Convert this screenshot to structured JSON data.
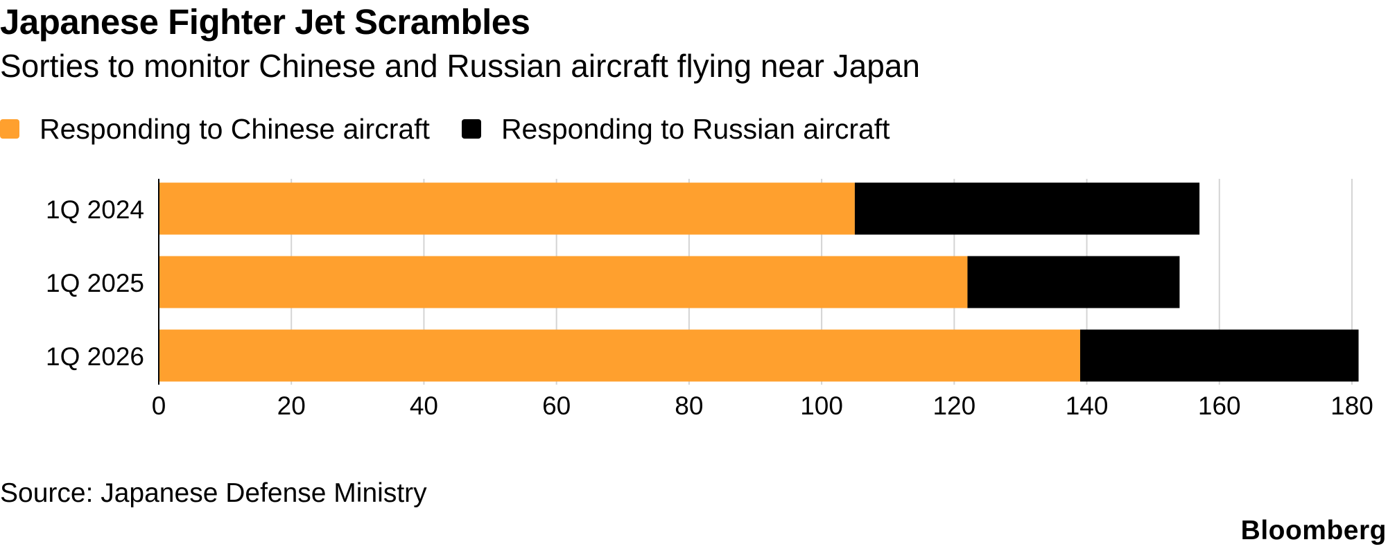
{
  "chart_data": {
    "type": "bar",
    "orientation": "horizontal",
    "stacked": true,
    "title": "Japanese Fighter Jet Scrambles",
    "subtitle": "Sorties to monitor Chinese and Russian aircraft flying near Japan",
    "xlabel": "",
    "ylabel": "",
    "categories": [
      "1Q 2024",
      "1Q 2025",
      "1Q 2026"
    ],
    "series": [
      {
        "name": "Responding to Chinese aircraft",
        "values": [
          105,
          122,
          139
        ],
        "color": "#FFA02E"
      },
      {
        "name": "Responding to Russian aircraft",
        "values": [
          52,
          32,
          42
        ],
        "color": "#000000"
      }
    ],
    "xlim": [
      0,
      180
    ],
    "xticks": [
      0,
      20,
      40,
      60,
      80,
      100,
      120,
      140,
      160,
      180
    ],
    "grid": true,
    "legend_position": "top-left",
    "source": "Source: Japanese Defense Ministry",
    "brand": "Bloomberg"
  }
}
